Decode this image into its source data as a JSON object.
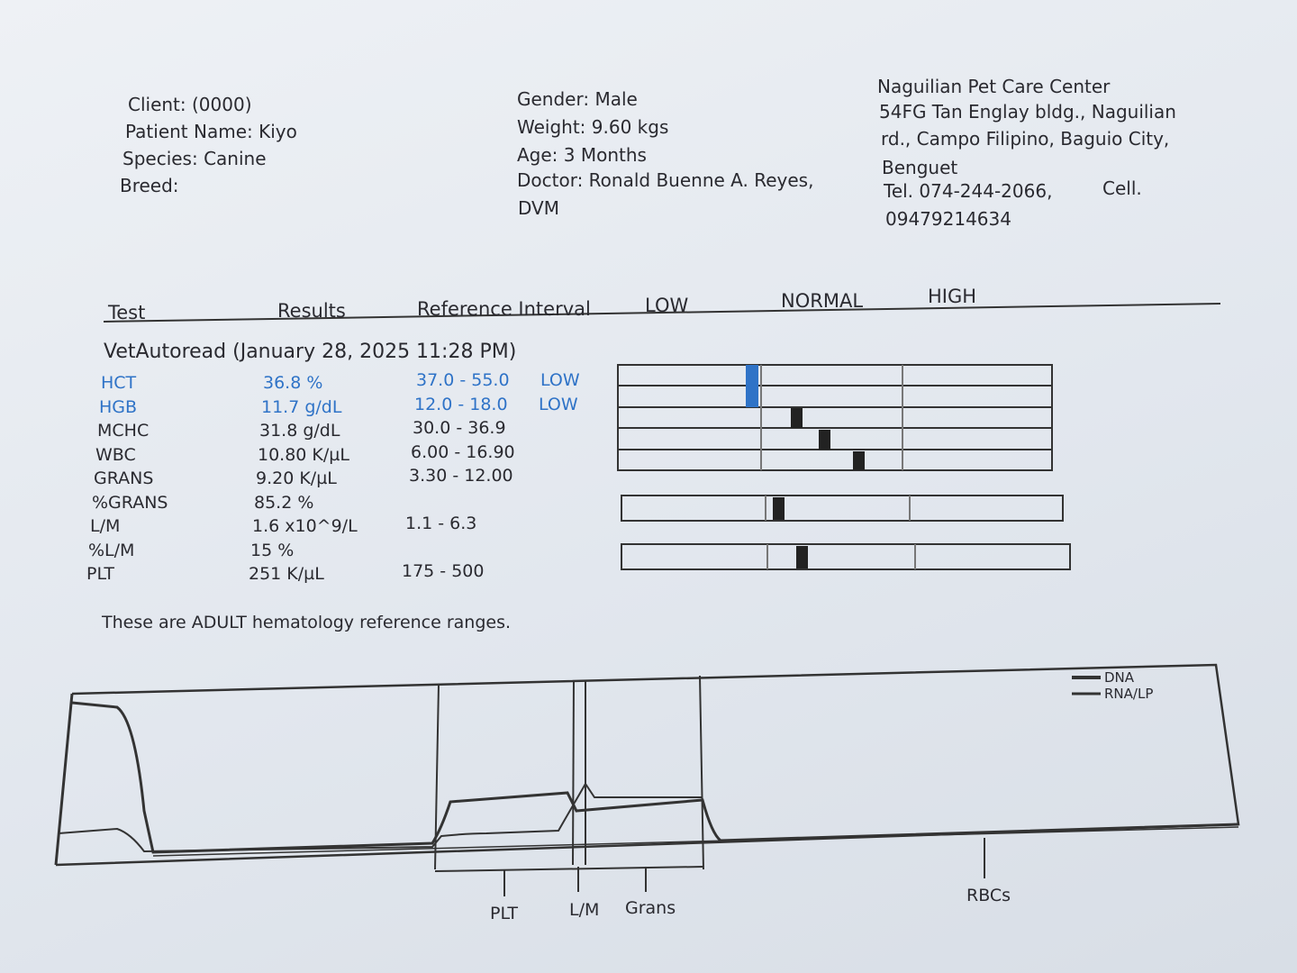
{
  "patient": {
    "lines": [
      "Client:  (0000)",
      "Patient Name: Kiyo",
      "Species: Canine",
      "Breed:"
    ]
  },
  "details": {
    "lines": [
      "Gender: Male",
      "Weight: 9.60 kgs",
      "Age: 3 Months",
      "Doctor: Ronald Buenne A. Reyes,",
      "DVM"
    ]
  },
  "clinic": {
    "lines": [
      "Naguilian Pet Care Center",
      "54FG Tan Englay bldg., Naguilian",
      "rd., Campo Filipino, Baguio City,",
      "Benguet",
      "Tel. 074-244-2066,",
      "Cell.",
      "09479214634"
    ]
  },
  "table": {
    "headers": [
      "Test",
      "Results",
      "Reference Interval",
      "LOW",
      "NORMAL",
      "HIGH"
    ],
    "section": "VetAutoread (January 28, 2025 11:28 PM)",
    "rows": [
      {
        "test": "HCT",
        "result": "36.8 %",
        "range": "37.0 - 55.0",
        "flag": "LOW"
      },
      {
        "test": "HGB",
        "result": "11.7 g/dL",
        "range": "12.0 - 18.0",
        "flag": "LOW"
      },
      {
        "test": "MCHC",
        "result": "31.8 g/dL",
        "range": "30.0 - 36.9"
      },
      {
        "test": "WBC",
        "result": "10.80 K/µL",
        "range": "6.00 - 16.90"
      },
      {
        "test": "GRANS",
        "result": "9.20 K/µL",
        "range": "3.30 - 12.00"
      },
      {
        "test": "%GRANS",
        "result": "85.2 %"
      },
      {
        "test": "L/M",
        "result": "1.6 x10^9/L",
        "range": "1.1 - 6.3"
      },
      {
        "test": "%L/M",
        "result": "15 %"
      },
      {
        "test": "PLT",
        "result": "251 K/µL",
        "range": "175 - 500"
      }
    ],
    "note": "These are ADULT hematology reference ranges."
  },
  "graph": {
    "legend": [
      "DNA",
      "RNA/LP"
    ],
    "labels": [
      "PLT",
      "L/M",
      "Grans",
      "RBCs"
    ]
  }
}
